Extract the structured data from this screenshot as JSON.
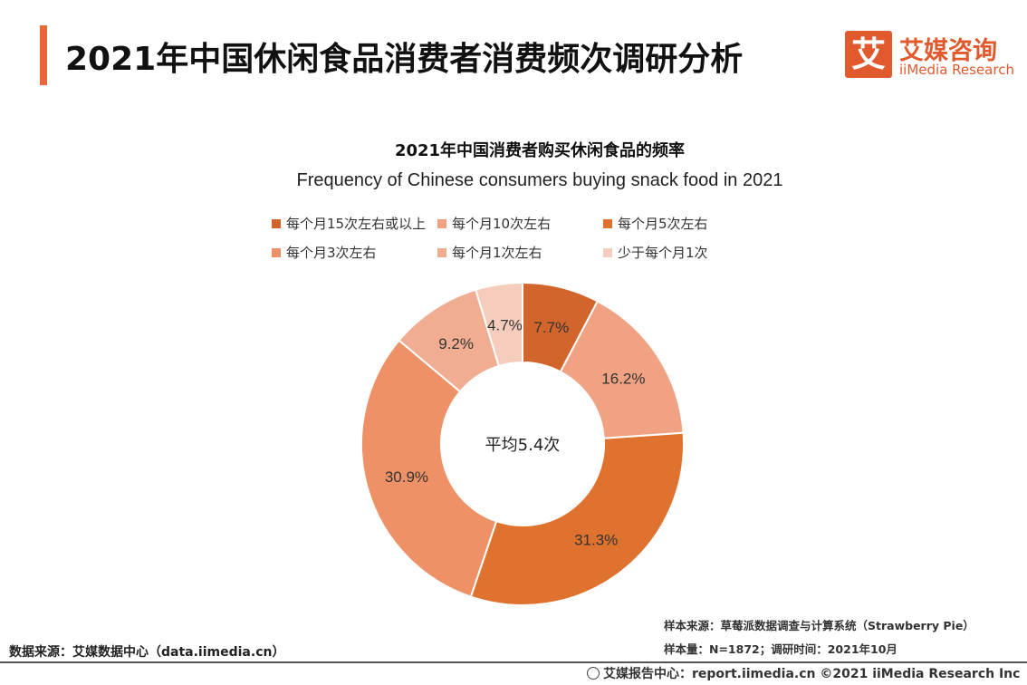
{
  "header": {
    "title": "2021年中国休闲食品消费者消费频次调研分析",
    "logo_mark": "艾",
    "logo_cn": "艾媒咨询",
    "logo_en": "iiMedia Research"
  },
  "chart_data": {
    "type": "pie",
    "title": "2021年中国消费者购买休闲食品的频率",
    "subtitle": "Frequency of Chinese consumers buying snack food in 2021",
    "center_label": "平均5.4次",
    "categories": [
      "每个月15次左右或以上",
      "每个月10次左右",
      "每个月5次左右",
      "每个月3次左右",
      "每个月1次左右",
      "少于每个月1次"
    ],
    "values": [
      7.7,
      16.2,
      31.3,
      30.9,
      9.2,
      4.7
    ],
    "value_labels": [
      "7.7%",
      "16.2%",
      "31.3%",
      "30.9%",
      "9.2%",
      "4.7%"
    ],
    "colors": [
      "#d2652c",
      "#f0a283",
      "#e0722f",
      "#ee9166",
      "#f1ad92",
      "#f6cdbd"
    ],
    "unit": "%",
    "donut": true
  },
  "footer": {
    "data_source": "数据来源：艾媒数据中心（data.iimedia.cn）",
    "sample_source": "样本来源：草莓派数据调查与计算系统（Strawberry Pie）",
    "sample_size": "样本量：N=1872；调研时间：2021年10月",
    "copyright": "艾媒报告中心：report.iimedia.cn  ©2021  iiMedia Research  Inc"
  }
}
